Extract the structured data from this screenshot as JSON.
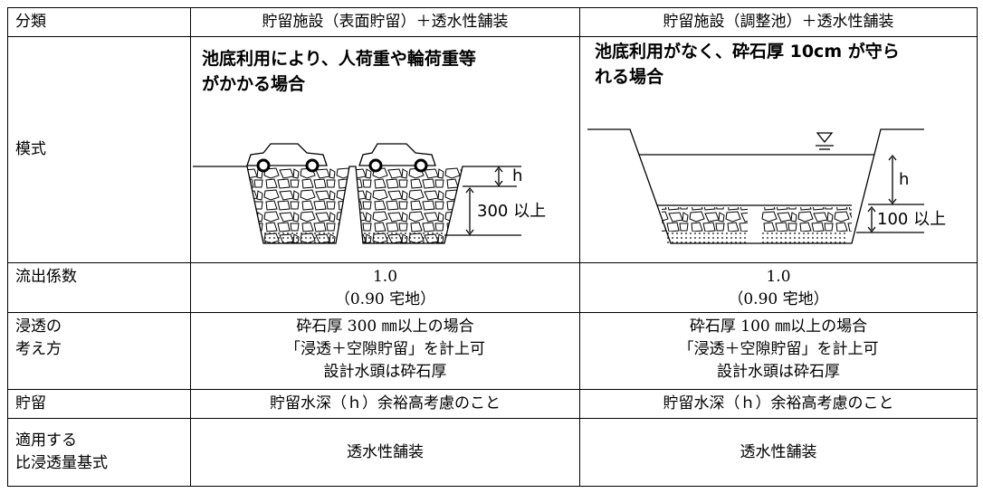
{
  "table": {
    "header": [
      "分類",
      "貯留施設（表面貯留）＋透水性舗装",
      "貯留施設（調整池）＋透水性舗装"
    ],
    "diagram_row": {
      "label": "模式",
      "diagrams": [
        {
          "caption": [
            "池底利用により、人荷重や輪荷重等",
            "がかかる場合"
          ],
          "labels": [
            "h",
            "300 以上"
          ]
        },
        {
          "caption": [
            "池底利用がなく、砕石厚 10cm が守ら",
            "れる場合"
          ],
          "labels": [
            "h",
            "100 以上"
          ]
        }
      ]
    },
    "rows": [
      {
        "label": [
          "流出係数"
        ],
        "cells": [
          [
            "1.0",
            "（0.90 宅地）"
          ],
          [
            "1.0",
            "（0.90 宅地）"
          ]
        ]
      },
      {
        "label": [
          "浸透の",
          "考え方"
        ],
        "cells": [
          [
            "砕石厚 300 ㎜以上の場合",
            "「浸透＋空隙貯留」を計上可",
            "設計水頭は砕石厚"
          ],
          [
            "砕石厚 100 ㎜以上の場合",
            "「浸透＋空隙貯留」を計上可",
            "設計水頭は砕石厚"
          ]
        ]
      },
      {
        "label": [
          "貯留"
        ],
        "cells": [
          [
            "貯留水深（ｈ）余裕高考慮のこと"
          ],
          [
            "貯留水深（ｈ）余裕高考慮のこと"
          ]
        ]
      },
      {
        "label": [
          "適用する",
          "比浸透量基式"
        ],
        "cells": [
          [
            "透水性舗装"
          ],
          [
            "透水性舗装"
          ]
        ]
      }
    ]
  }
}
